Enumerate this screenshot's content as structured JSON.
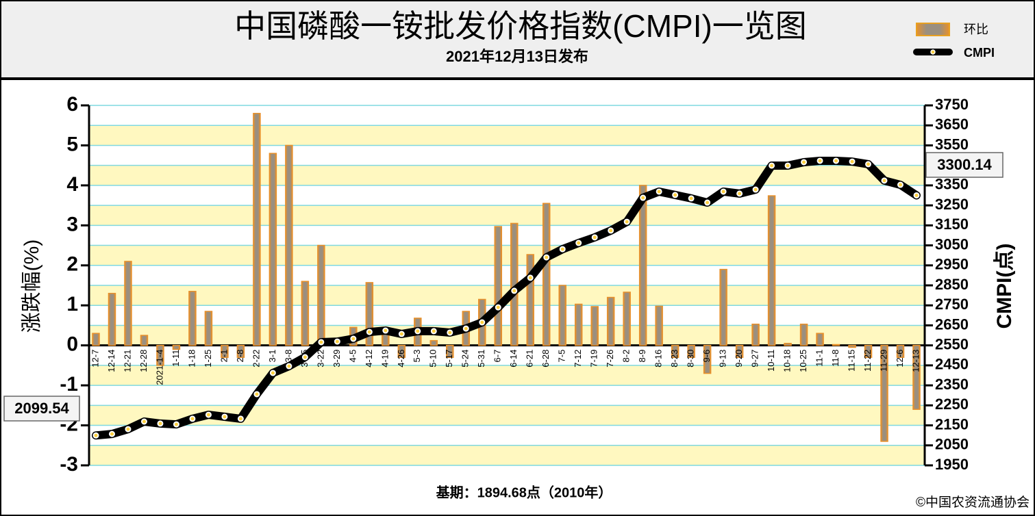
{
  "chart_data": {
    "type": "bar-line",
    "title": "中国磷酸一铵批发价格指数(CMPI)一览图",
    "subtitle": "2021年12月13日发布",
    "y_label": "涨跌幅(%)",
    "y2_label": "CMPI(点)",
    "footnote": "基期：1894.68点（2010年）",
    "source": "©中国农资流通协会",
    "categories": [
      "12-7",
      "12-14",
      "12-21",
      "12-28",
      "2021-1-4",
      "1-11",
      "1-18",
      "1-25",
      "2-1",
      "2-8",
      "2-22",
      "3-1",
      "3-8",
      "3-15",
      "3-22",
      "3-29",
      "4-5",
      "4-12",
      "4-19",
      "4-26",
      "5-3",
      "5-10",
      "5-17",
      "5-24",
      "5-31",
      "6-7",
      "6-14",
      "6-21",
      "6-28",
      "7-5",
      "7-12",
      "7-19",
      "7-26",
      "8-2",
      "8-9",
      "8-16",
      "8-23",
      "8-30",
      "9-6",
      "9-13",
      "9-20",
      "9-27",
      "10-11",
      "10-18",
      "10-25",
      "11-1",
      "11-8",
      "11-15",
      "11-22",
      "11-29",
      "12-6",
      "12-13"
    ],
    "series": [
      {
        "name": "环比",
        "type": "bar",
        "color": "#e8902a",
        "values": [
          0.3,
          1.3,
          2.1,
          0.25,
          -0.5,
          -0.1,
          1.35,
          0.85,
          -0.3,
          -0.3,
          5.8,
          4.8,
          5.0,
          1.6,
          2.5,
          0,
          0.45,
          1.57,
          0.3,
          -0.3,
          0.68,
          0.12,
          -0.3,
          0.85,
          1.15,
          2.97,
          3.05,
          2.27,
          3.55,
          1.5,
          1.03,
          0.97,
          1.2,
          1.33,
          4.0,
          0.98,
          -0.3,
          -0.3,
          -0.7,
          1.9,
          -0.3,
          0.53,
          3.74,
          0.05,
          0.53,
          0.3,
          0.02,
          -0.05,
          -0.3,
          -2.4,
          -0.3,
          -1.6
        ]
      },
      {
        "name": "CMPI",
        "type": "line",
        "axis": "y2",
        "color": "#000000",
        "values": [
          2099.54,
          2107,
          2131,
          2169,
          2159,
          2155,
          2183,
          2203,
          2193,
          2183,
          2306,
          2412,
          2446,
          2491,
          2566,
          2569,
          2583,
          2617,
          2624,
          2607,
          2621,
          2621,
          2614,
          2634,
          2665,
          2740,
          2823,
          2888,
          2990,
          3031,
          3062,
          3090,
          3124,
          3168,
          3288,
          3319,
          3302,
          3285,
          3264,
          3319,
          3309,
          3329,
          3449,
          3449,
          3466,
          3473,
          3473,
          3469,
          3456,
          3374,
          3353,
          3300.14
        ]
      }
    ],
    "ylim": [
      -3,
      6
    ],
    "yticks": [
      -3,
      -2,
      -1,
      0,
      1,
      2,
      3,
      4,
      5,
      6
    ],
    "y2lim": [
      1950,
      3750
    ],
    "y2ticks": [
      1950,
      2050,
      2150,
      2250,
      2350,
      2450,
      2550,
      2650,
      2750,
      2850,
      2950,
      3050,
      3150,
      3250,
      3350,
      3450,
      3550,
      3650,
      3750
    ],
    "grid": true
  }
}
